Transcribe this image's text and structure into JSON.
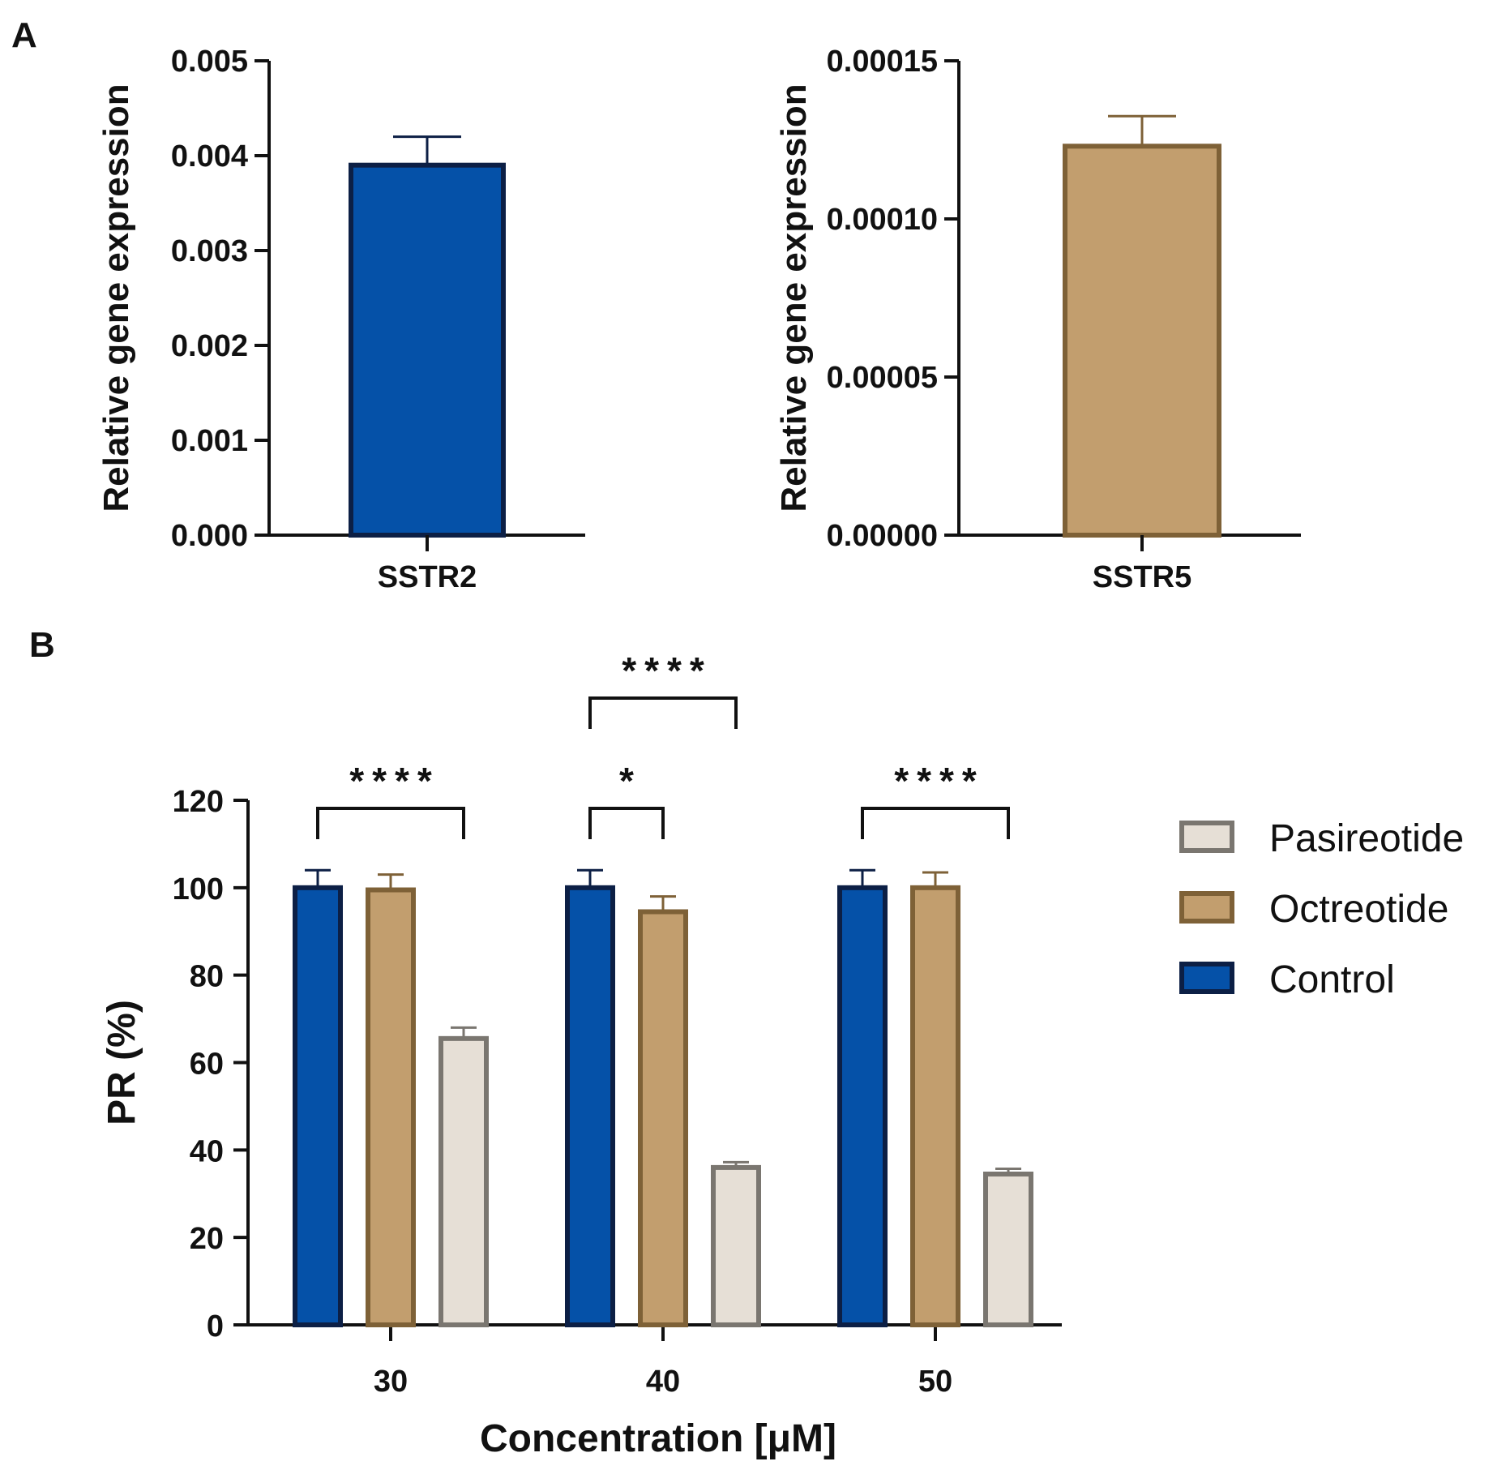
{
  "panels": [
    {
      "id": "A",
      "letter": "A",
      "charts": [
        {
          "type": "bar",
          "title": "",
          "xlabel": "",
          "ylabel": "Relative gene expression",
          "ylim": [
            0,
            0.005
          ],
          "yticks": [
            "0.000",
            "0.001",
            "0.002",
            "0.003",
            "0.004",
            "0.005"
          ],
          "categories": [
            "SSTR2"
          ],
          "values": [
            0.0039
          ],
          "errors": [
            0.0003
          ],
          "color": "#0551a8",
          "border_color": "#0c1f45"
        },
        {
          "type": "bar",
          "title": "",
          "xlabel": "",
          "ylabel": "Relative gene expression",
          "ylim": [
            0,
            0.00015
          ],
          "yticks": [
            "0.00000",
            "0.00005",
            "0.00010",
            "0.00015"
          ],
          "categories": [
            "SSTR5"
          ],
          "values": [
            0.000123
          ],
          "errors": [
            9.5e-06
          ],
          "color": "#c29e6e",
          "border_color": "#7e6137"
        }
      ]
    },
    {
      "id": "B",
      "letter": "B"
    }
  ],
  "chart_data": [
    {
      "type": "bar",
      "panel": "A",
      "categories": [
        "SSTR2"
      ],
      "values": [
        0.0039
      ],
      "errors": [
        0.0003
      ],
      "ylabel": "Relative gene expression",
      "ylim": [
        0,
        0.005
      ]
    },
    {
      "type": "bar",
      "panel": "A",
      "categories": [
        "SSTR5"
      ],
      "values": [
        0.000123
      ],
      "errors": [
        9.5e-06
      ],
      "ylabel": "Relative gene expression",
      "ylim": [
        0,
        0.00015
      ]
    },
    {
      "type": "bar",
      "panel": "B",
      "title": "",
      "xlabel": "Concentration [μM]",
      "ylabel": "PR (%)",
      "ylim": [
        0,
        120
      ],
      "yticks": [
        "0",
        "20",
        "40",
        "60",
        "80",
        "100",
        "120"
      ],
      "categories": [
        "30",
        "40",
        "50"
      ],
      "series": [
        {
          "name": "Control",
          "values": [
            100,
            100,
            100
          ],
          "errors": [
            4,
            4,
            4
          ],
          "color": "#0551a8",
          "border_color": "#0c1f45"
        },
        {
          "name": "Octreotide",
          "values": [
            99.5,
            94.5,
            100
          ],
          "errors": [
            3.5,
            3.5,
            3.5
          ],
          "color": "#c29e6e",
          "border_color": "#7e6137"
        },
        {
          "name": "Pasireotide",
          "values": [
            65.5,
            36,
            34.5
          ],
          "errors": [
            2.5,
            1.2,
            1.2
          ],
          "color": "#e6dfd6",
          "border_color": "#7a7670"
        }
      ],
      "legend": [
        "Pasireotide",
        "Octreotide",
        "Control"
      ],
      "legend_position": "right",
      "significance": [
        {
          "group": "30",
          "from": "Control",
          "to": "Pasireotide",
          "label": "****"
        },
        {
          "group": "40",
          "from": "Control",
          "to": "Octreotide",
          "label": "*"
        },
        {
          "group": "40",
          "from": "Control",
          "to": "Pasireotide",
          "label": "****"
        },
        {
          "group": "50",
          "from": "Control",
          "to": "Pasireotide",
          "label": "****"
        }
      ]
    }
  ]
}
